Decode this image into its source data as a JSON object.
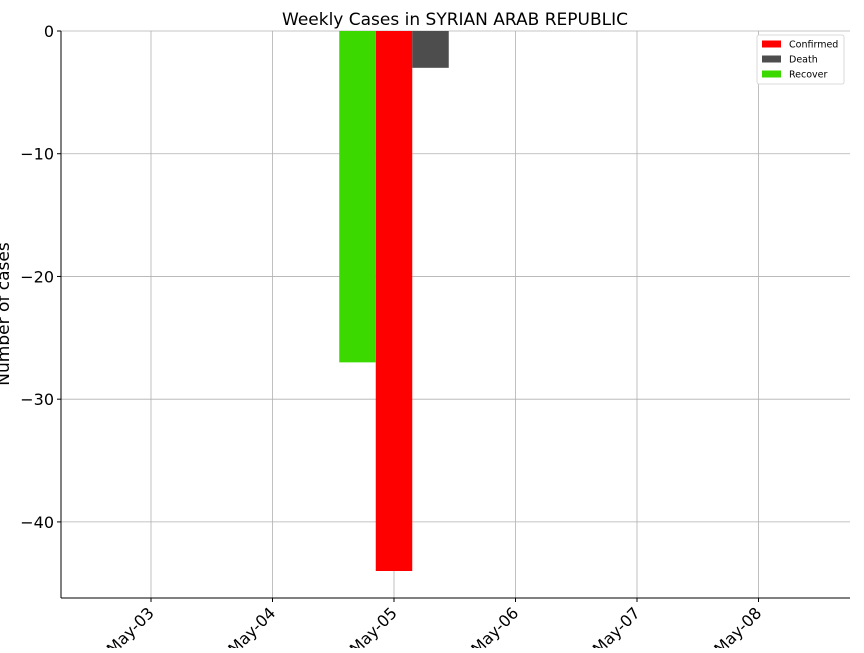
{
  "chart_data": {
    "type": "bar",
    "title": "Weekly Cases in SYRIAN ARAB REPUBLIC",
    "xlabel": "",
    "ylabel": "Number of cases",
    "categories": [
      "May-03",
      "May-04",
      "May-05",
      "May-06",
      "May-07",
      "May-08"
    ],
    "series": [
      {
        "name": "Confirmed",
        "color": "#ff0000",
        "values": [
          0,
          0,
          -44,
          0,
          0,
          0
        ]
      },
      {
        "name": "Death",
        "color": "#4d4d4d",
        "values": [
          0,
          0,
          -3,
          0,
          0,
          0
        ]
      },
      {
        "name": "Recover",
        "color": "#3cd900",
        "values": [
          0,
          0,
          -27,
          0,
          0,
          0
        ]
      }
    ],
    "ylim": [
      -46.2,
      0
    ],
    "yticks": [
      0,
      -10,
      -20,
      -30,
      -40
    ],
    "ytick_labels": [
      "0",
      "−10",
      "−20",
      "−30",
      "−40"
    ],
    "grid": true,
    "legend_position": "top-right"
  }
}
